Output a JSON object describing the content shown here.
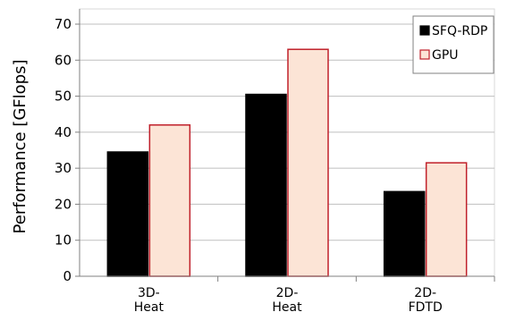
{
  "chart_data": {
    "type": "bar",
    "categories": [
      [
        "3D-",
        "Heat"
      ],
      [
        "2D-",
        "Heat"
      ],
      [
        "2D-",
        "FDTD"
      ]
    ],
    "series": [
      {
        "name": "SFQ-RDP",
        "values": [
          34.5,
          50.5,
          23.5
        ],
        "fill": "#000000",
        "stroke": "#000000"
      },
      {
        "name": "GPU",
        "values": [
          42,
          63,
          31.5
        ],
        "fill": "#fce4d6",
        "stroke": "#c0202a"
      }
    ],
    "title": "",
    "xlabel": "",
    "ylabel": "Performance [GFlops]",
    "ylim": [
      0,
      70
    ],
    "yticks": [
      0,
      10,
      20,
      30,
      40,
      50,
      60,
      70
    ],
    "grid": true,
    "legend_position": "top-right"
  }
}
